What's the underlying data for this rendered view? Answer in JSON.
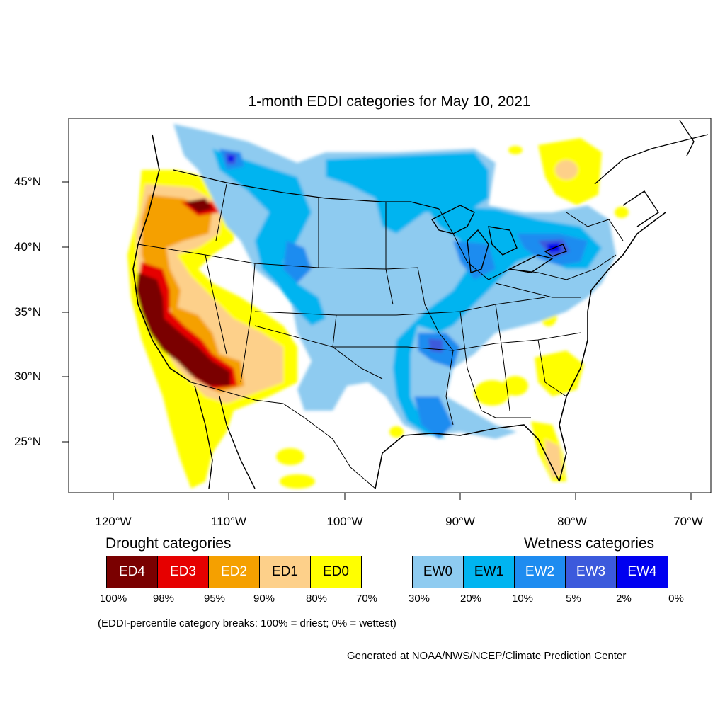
{
  "title": "1-month EDDI categories for May 10, 2021",
  "lat_labels": [
    "45°N",
    "40°N",
    "35°N",
    "30°N",
    "25°N"
  ],
  "lon_labels": [
    "120°W",
    "110°W",
    "100°W",
    "90°W",
    "80°W",
    "70°W"
  ],
  "legend": {
    "drought_heading": "Drought categories",
    "wetness_heading": "Wetness categories",
    "categories": [
      {
        "label": "ED4",
        "color": "#7a0000",
        "text_color": "#ffffff"
      },
      {
        "label": "ED3",
        "color": "#e60000",
        "text_color": "#ffffff"
      },
      {
        "label": "ED2",
        "color": "#f5a000",
        "text_color": "#ffffff"
      },
      {
        "label": "ED1",
        "color": "#fdd08a",
        "text_color": "#000000"
      },
      {
        "label": "ED0",
        "color": "#ffff00",
        "text_color": "#000000"
      },
      {
        "label": "",
        "color": "#ffffff",
        "text_color": "#000000"
      },
      {
        "label": "EW0",
        "color": "#8ecbf0",
        "text_color": "#000000"
      },
      {
        "label": "EW1",
        "color": "#00b4f0",
        "text_color": "#000000"
      },
      {
        "label": "EW2",
        "color": "#1e8cf0",
        "text_color": "#ffffff"
      },
      {
        "label": "EW3",
        "color": "#3c5adc",
        "text_color": "#ffffff"
      },
      {
        "label": "EW4",
        "color": "#0000f0",
        "text_color": "#ffffff"
      }
    ],
    "percent_labels": [
      "100%",
      "98%",
      "95%",
      "90%",
      "80%",
      "70%",
      "30%",
      "20%",
      "10%",
      "5%",
      "2%",
      "0%"
    ]
  },
  "note": "(EDDI-percentile category breaks: 100% = driest; 0% = wettest)",
  "credit": "Generated at NOAA/NWS/NCEP/Climate Prediction Center"
}
